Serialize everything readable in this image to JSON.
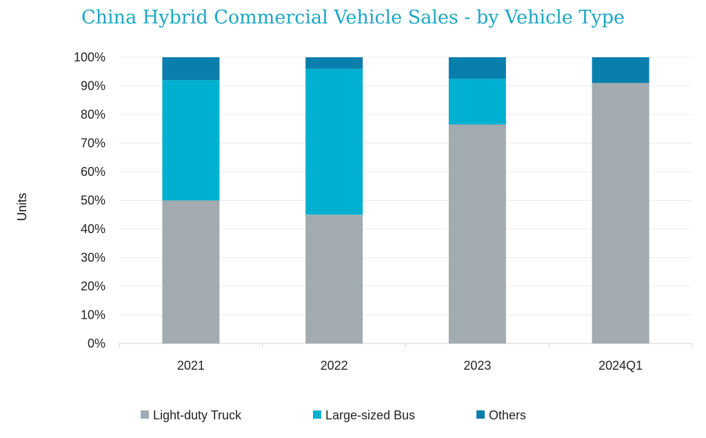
{
  "chart_data": {
    "type": "bar",
    "stacked": true,
    "title": "China Hybrid Commercial Vehicle Sales - by Vehicle Type",
    "xlabel": "",
    "ylabel": "Units",
    "categories": [
      "2021",
      "2022",
      "2023",
      "2024Q1"
    ],
    "y_ticks": [
      "0%",
      "10%",
      "20%",
      "30%",
      "40%",
      "50%",
      "60%",
      "70%",
      "80%",
      "90%",
      "100%"
    ],
    "ylim": [
      0,
      100
    ],
    "grid": true,
    "legend_position": "bottom",
    "series": [
      {
        "name": "Light-duty Truck",
        "color": "#a2abb0",
        "values": [
          50,
          45,
          76.5,
          91
        ]
      },
      {
        "name": "Large-sized Bus",
        "color": "#00b0d0",
        "values": [
          42,
          51,
          16,
          0
        ]
      },
      {
        "name": "Others",
        "color": "#0a7fad",
        "values": [
          8,
          4,
          7.5,
          9
        ]
      }
    ],
    "title_color": "#1aa6c4"
  }
}
